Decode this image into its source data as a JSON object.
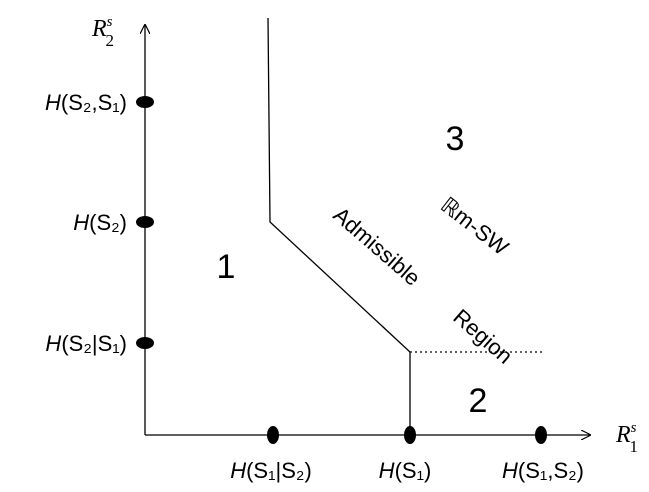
{
  "axes": {
    "x": {
      "base": "R",
      "sup": "s",
      "sub": "1"
    },
    "y": {
      "base": "R",
      "sup": "s",
      "sub": "2"
    }
  },
  "y_points": [
    {
      "fn": "H",
      "args": "(S₂,S₁)"
    },
    {
      "fn": "H",
      "args": "(S₂)"
    },
    {
      "fn": "H",
      "args": "(S₂|S₁)"
    }
  ],
  "x_points": [
    {
      "fn": "H",
      "args": "(S₁|S₂)"
    },
    {
      "fn": "H",
      "args": "(S₁)"
    },
    {
      "fn": "H",
      "args": "(S₁,S₂)"
    }
  ],
  "regions": [
    "1",
    "2",
    "3"
  ],
  "admissible": {
    "word1": "Admissible",
    "word2": "Region",
    "set": "ℝm-SW"
  }
}
